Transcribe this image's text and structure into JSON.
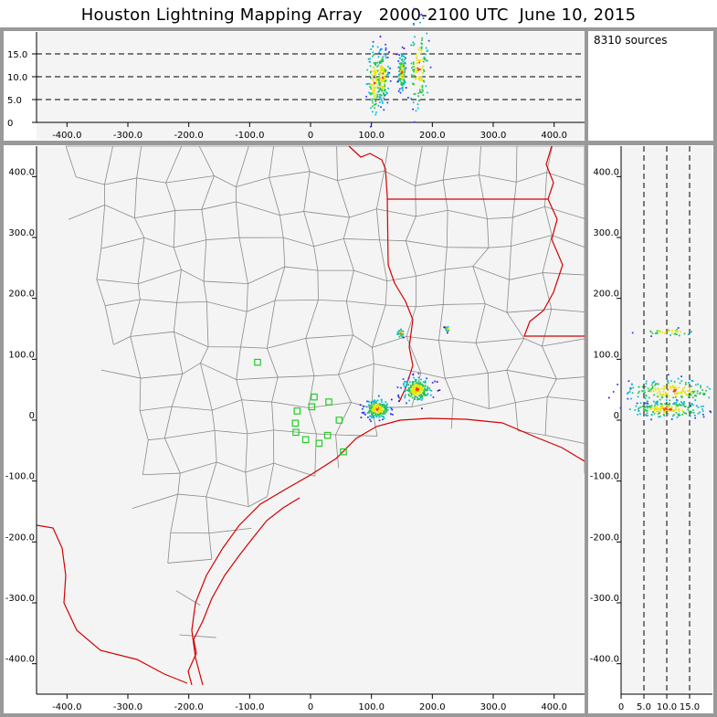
{
  "title": "Houston Lightning Mapping Array   2000-2100 UTC  June 10, 2015",
  "source_count_label": "8310 sources",
  "colors": {
    "panel_bg": "#f4f4f4",
    "border": "#999999",
    "county_lines": "#8a8a8a",
    "state_coast_lines": "#d40000",
    "stations": "#22cc22",
    "density_scale": [
      "#4b00b3",
      "#2233ff",
      "#00b8d8",
      "#22c455",
      "#e5e500",
      "#ff3300"
    ]
  },
  "chart_data": [
    {
      "panel": "altitude-vs-east-west",
      "type": "scatter",
      "x_ticks": [
        "-400.0",
        "-300.0",
        "-200.0",
        "-100.0",
        "0",
        "100.0",
        "200.0",
        "300.0",
        "400.0"
      ],
      "y_ticks": [
        "0",
        "5.0",
        "10.0",
        "15.0"
      ],
      "xlim": [
        -450,
        450
      ],
      "ylim": [
        0,
        20
      ],
      "reference_lines_y": [
        5,
        10,
        15
      ],
      "clusters": [
        {
          "x": 105,
          "y": 9,
          "spread_x": 6,
          "spread_y": 4
        },
        {
          "x": 118,
          "y": 10,
          "spread_x": 5,
          "spread_y": 3
        },
        {
          "x": 150,
          "y": 11,
          "spread_x": 3,
          "spread_y": 2
        },
        {
          "x": 178,
          "y": 12,
          "spread_x": 8,
          "spread_y": 5
        }
      ]
    },
    {
      "panel": "plan-view-map",
      "type": "scatter",
      "x_ticks": [
        "-400.0",
        "-300.0",
        "-200.0",
        "-100.0",
        "0",
        "100.0",
        "200.0",
        "300.0",
        "400.0"
      ],
      "y_ticks": [
        "-400.0",
        "-300.0",
        "-200.0",
        "-100.0",
        "0",
        "100.0",
        "200.0",
        "300.0",
        "400.0"
      ],
      "xlim": [
        -450,
        450
      ],
      "ylim": [
        -450,
        450
      ],
      "stations": [
        {
          "x": -87,
          "y": 95
        },
        {
          "x": 6,
          "y": 38
        },
        {
          "x": 30,
          "y": 30
        },
        {
          "x": 2,
          "y": 22
        },
        {
          "x": -22,
          "y": 15
        },
        {
          "x": -25,
          "y": -5
        },
        {
          "x": 47,
          "y": 0
        },
        {
          "x": -24,
          "y": -20
        },
        {
          "x": -8,
          "y": -32
        },
        {
          "x": 28,
          "y": -25
        },
        {
          "x": 14,
          "y": -38
        },
        {
          "x": 54,
          "y": -52
        }
      ],
      "clusters": [
        {
          "x": 110,
          "y": 18,
          "spread_x": 10,
          "spread_y": 8
        },
        {
          "x": 175,
          "y": 50,
          "spread_x": 12,
          "spread_y": 10
        },
        {
          "x": 148,
          "y": 143,
          "spread_x": 3,
          "spread_y": 3
        },
        {
          "x": 225,
          "y": 150,
          "spread_x": 2,
          "spread_y": 2
        }
      ]
    },
    {
      "panel": "north-south-vs-altitude",
      "type": "scatter",
      "x_ticks": [
        "0",
        "5.0",
        "10.0",
        "15.0"
      ],
      "y_ticks": [
        "-400.0",
        "-300.0",
        "-200.0",
        "-100.0",
        "0",
        "100.0",
        "200.0",
        "300.0",
        "400.0"
      ],
      "xlim": [
        0,
        20
      ],
      "ylim": [
        -450,
        450
      ],
      "reference_lines_x": [
        5,
        10,
        15
      ],
      "clusters": [
        {
          "x": 10,
          "y": 18,
          "spread_x": 4,
          "spread_y": 7
        },
        {
          "x": 11,
          "y": 48,
          "spread_x": 5,
          "spread_y": 10
        },
        {
          "x": 10.5,
          "y": 145,
          "spread_x": 3,
          "spread_y": 3
        }
      ]
    }
  ]
}
